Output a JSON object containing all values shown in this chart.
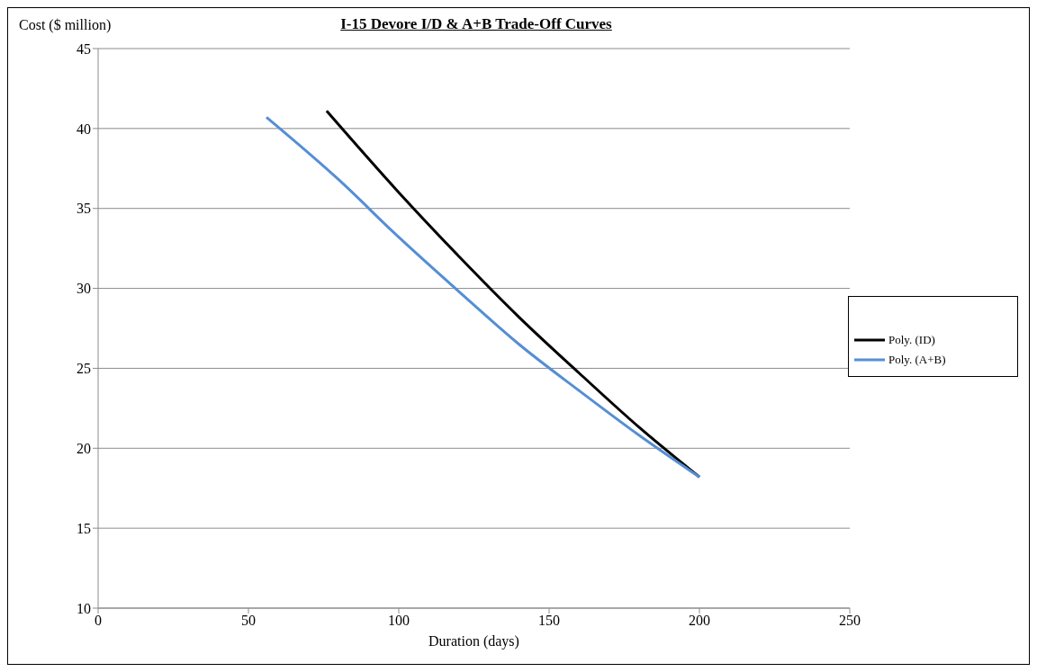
{
  "chart_data": {
    "type": "line",
    "title": "I-15 Devore I/D & A+B Trade-Off Curves",
    "xlabel": "Duration (days)",
    "ylabel": "Cost ($ million)",
    "series": [
      {
        "name": "Poly. (ID)",
        "color": "#000000",
        "x": [
          76,
          100,
          120,
          140,
          160,
          180,
          200
        ],
        "values": [
          41.1,
          36,
          32,
          28.2,
          24.7,
          21.3,
          18.2
        ]
      },
      {
        "name": "Poly. (A+B)",
        "color": "#558ed5",
        "x": [
          56,
          80,
          100,
          120,
          140,
          160,
          180,
          200
        ],
        "values": [
          40.7,
          36.8,
          33.2,
          29.8,
          26.5,
          23.6,
          20.8,
          18.2
        ]
      }
    ],
    "xlim": [
      0,
      250
    ],
    "xticks": [
      0,
      50,
      100,
      150,
      200,
      250
    ],
    "ylim": [
      10,
      45
    ],
    "yticks": [
      10,
      15,
      20,
      25,
      30,
      35,
      40,
      45
    ],
    "grid": "y",
    "legend": "right",
    "marker": "none",
    "line_style": "solid"
  }
}
